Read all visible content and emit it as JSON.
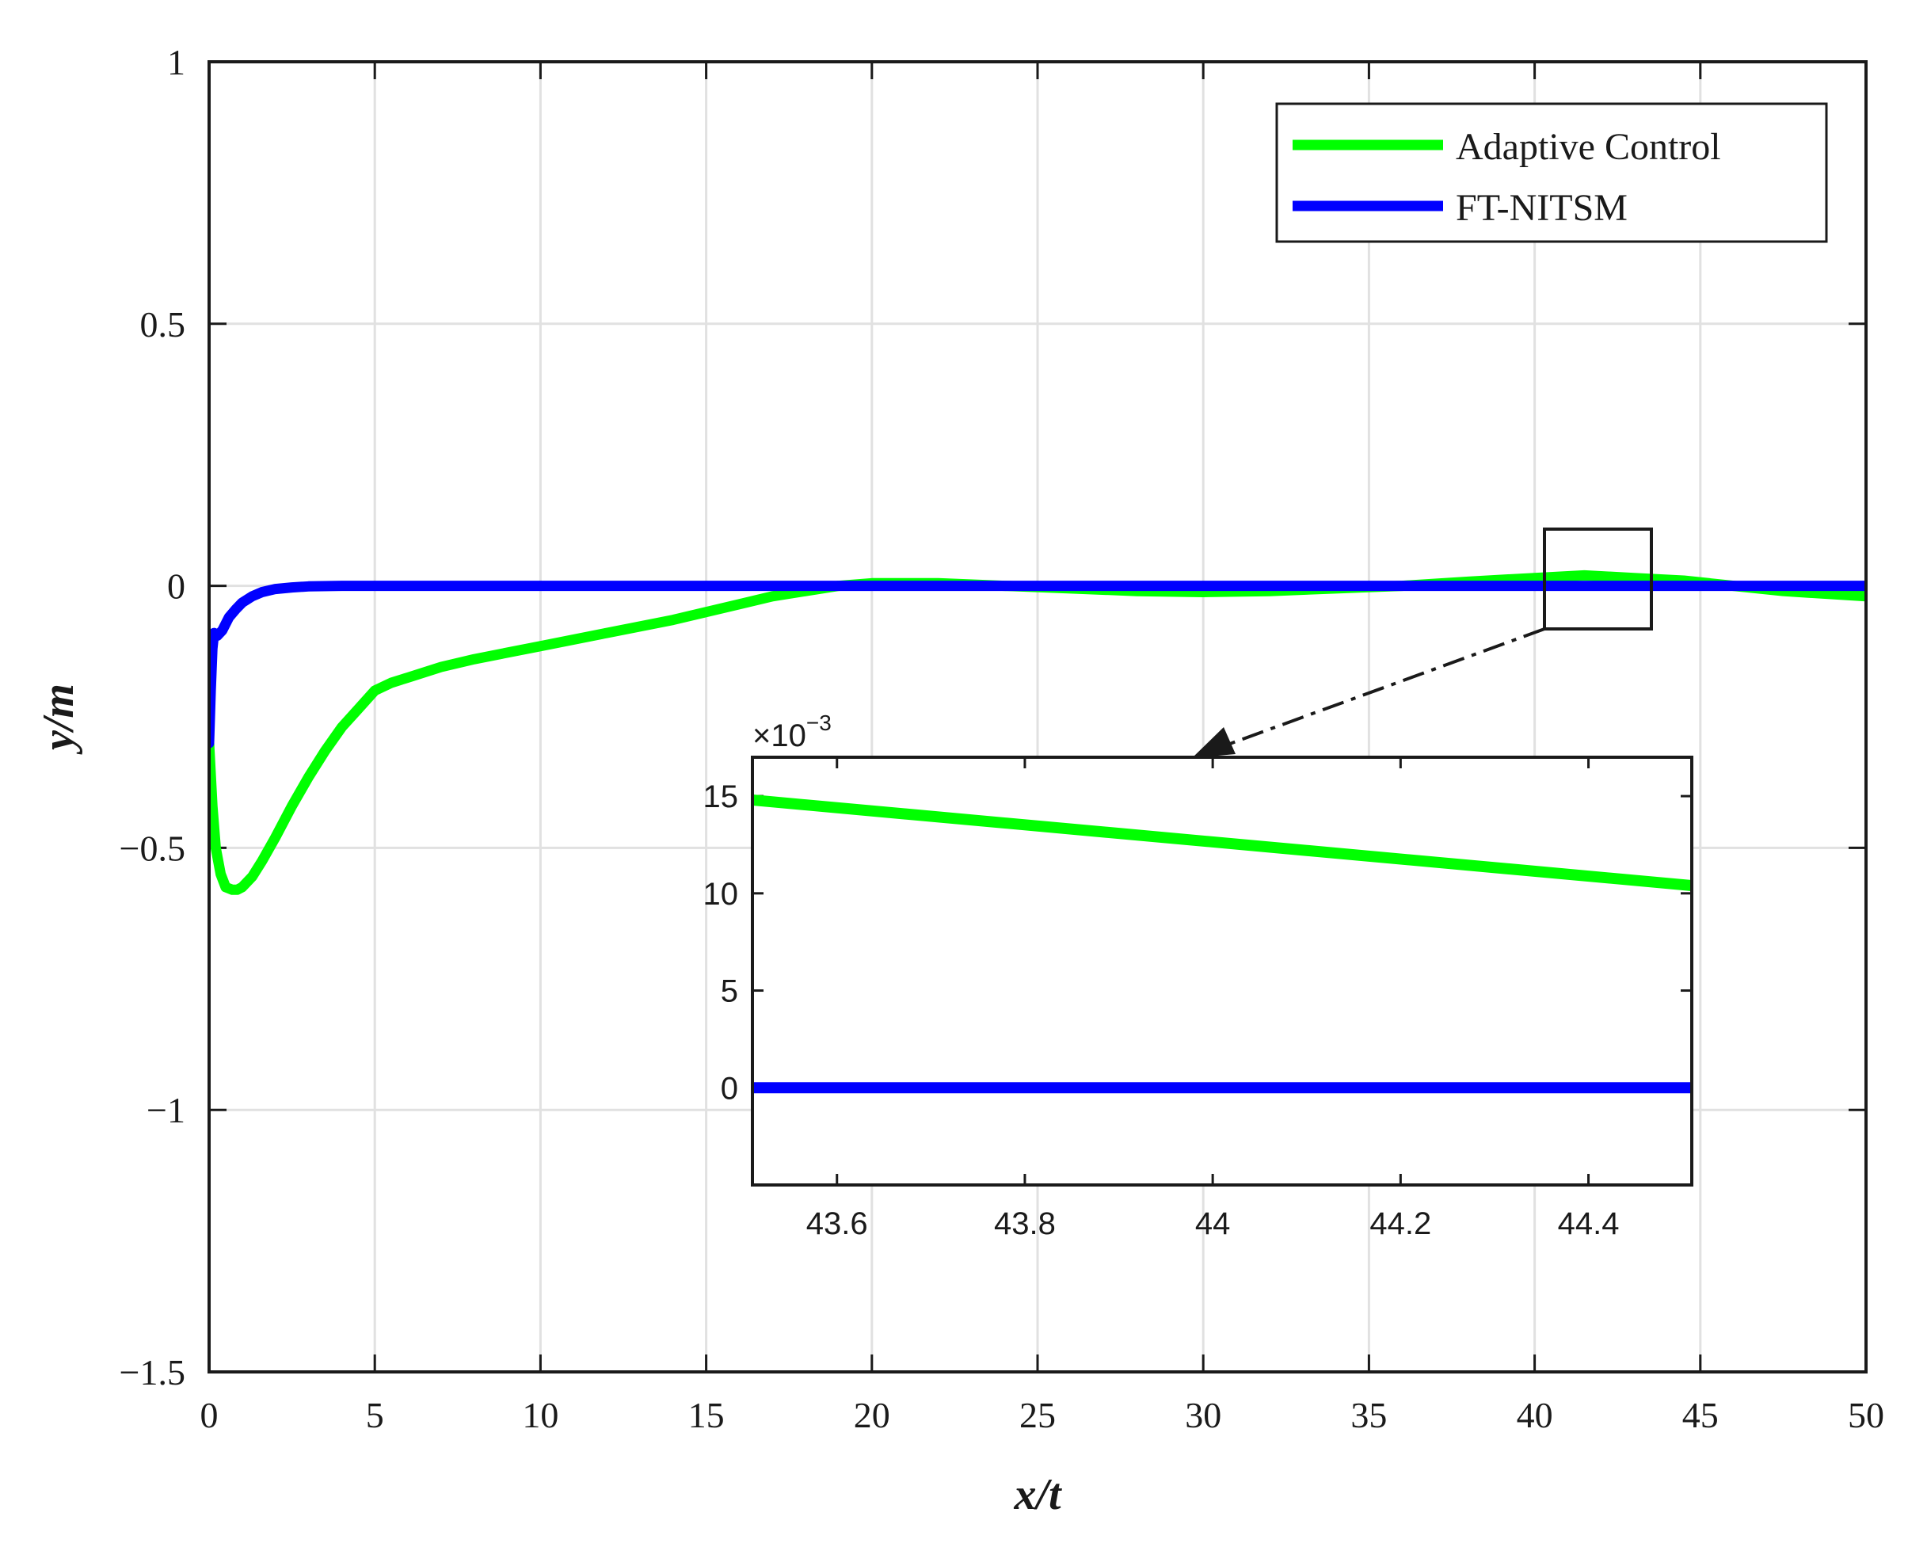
{
  "chart_data": [
    {
      "type": "line",
      "xlabel": "x/t",
      "ylabel": "y/m",
      "xlim": [
        0,
        50
      ],
      "ylim": [
        -1.5,
        1
      ],
      "xticks": [
        0,
        5,
        10,
        15,
        20,
        25,
        30,
        35,
        40,
        45,
        50
      ],
      "xtick_labels": [
        "0",
        "5",
        "10",
        "15",
        "20",
        "25",
        "30",
        "35",
        "40",
        "45",
        "50"
      ],
      "yticks": [
        -1.5,
        -1,
        -0.5,
        0,
        0.5,
        1
      ],
      "ytick_labels": [
        "−1.5",
        "−1",
        "−0.5",
        "0",
        "0.5",
        "1"
      ],
      "grid": true,
      "legend_position": "top-right",
      "series": [
        {
          "name": "Adaptive Control",
          "color": "#00ff00",
          "x": [
            0,
            0.1,
            0.2,
            0.35,
            0.5,
            0.7,
            0.85,
            1.0,
            1.3,
            1.6,
            2.0,
            2.5,
            3.0,
            3.5,
            4.0,
            4.5,
            5.0,
            5.5,
            6.0,
            7.0,
            8.0,
            10.0,
            12.0,
            14.0,
            15.0,
            16.0,
            17.0,
            18.0,
            19.0,
            20.0,
            22.0,
            24.0,
            26.0,
            28.0,
            30.0,
            32.0,
            34.0,
            36.0,
            38.0,
            40.0,
            41.5,
            43.0,
            44.5,
            46.0,
            47.5,
            50.0
          ],
          "y": [
            -0.3,
            -0.42,
            -0.5,
            -0.55,
            -0.575,
            -0.58,
            -0.58,
            -0.575,
            -0.555,
            -0.525,
            -0.48,
            -0.42,
            -0.365,
            -0.315,
            -0.27,
            -0.235,
            -0.2,
            -0.185,
            -0.175,
            -0.155,
            -0.14,
            -0.115,
            -0.09,
            -0.065,
            -0.05,
            -0.035,
            -0.02,
            -0.01,
            0.0,
            0.005,
            0.005,
            0.0,
            -0.005,
            -0.01,
            -0.012,
            -0.01,
            -0.005,
            0.0,
            0.008,
            0.015,
            0.02,
            0.015,
            0.01,
            0.0,
            -0.01,
            -0.02
          ]
        },
        {
          "name": "FT-NITSM",
          "color": "#0000ff",
          "x": [
            0,
            0.05,
            0.1,
            0.15,
            0.25,
            0.4,
            0.6,
            0.8,
            1.0,
            1.3,
            1.6,
            2.0,
            2.5,
            3.0,
            4.0,
            6.0,
            10.0,
            20.0,
            30.0,
            40.0,
            50.0
          ],
          "y": [
            -0.3,
            -0.2,
            -0.12,
            -0.09,
            -0.095,
            -0.085,
            -0.06,
            -0.045,
            -0.032,
            -0.02,
            -0.012,
            -0.006,
            -0.003,
            -0.001,
            0.0,
            0.0,
            0.0,
            0.0,
            0.0,
            0.0,
            0.0
          ]
        }
      ]
    },
    {
      "type": "line",
      "inset": true,
      "xlim": [
        43.51,
        44.51
      ],
      "ylim": [
        -0.005,
        0.017
      ],
      "y_exponent": "×10",
      "y_exponent_power": "−3",
      "xticks": [
        43.6,
        43.8,
        44,
        44.2,
        44.4
      ],
      "xtick_labels": [
        "43.6",
        "43.8",
        "44",
        "44.2",
        "44.4"
      ],
      "yticks": [
        0,
        0.005,
        0.01,
        0.015
      ],
      "ytick_labels": [
        "0",
        "5",
        "10",
        "15"
      ],
      "grid": false,
      "series": [
        {
          "name": "Adaptive Control",
          "color": "#00ff00",
          "x": [
            43.51,
            44.51
          ],
          "y": [
            0.0148,
            0.0104
          ]
        },
        {
          "name": "FT-NITSM",
          "color": "#0000ff",
          "x": [
            43.51,
            44.51
          ],
          "y": [
            0.0,
            0.0
          ]
        }
      ]
    }
  ]
}
